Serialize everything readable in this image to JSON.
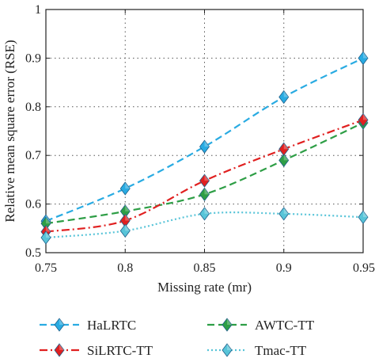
{
  "chart_data": {
    "type": "line",
    "title": "",
    "xlabel": "Missing rate (mr)",
    "ylabel": "Relative mean square error (RSE)",
    "xlim": [
      0.75,
      0.95
    ],
    "ylim": [
      0.5,
      1.0
    ],
    "x_ticks": [
      "0.75",
      "0.8",
      "0.85",
      "0.9",
      "0.95"
    ],
    "y_ticks": [
      "0.5",
      "0.6",
      "0.7",
      "0.8",
      "0.9",
      "1"
    ],
    "x": [
      0.75,
      0.8,
      0.85,
      0.9,
      0.95
    ],
    "grid": "dotted",
    "legend_position": "bottom, two columns below plot",
    "series": [
      {
        "name": "HaLRTC",
        "color": "#29abe2",
        "dash": "dashed",
        "marker": "diamond",
        "values": [
          0.565,
          0.632,
          0.718,
          0.82,
          0.9
        ]
      },
      {
        "name": "AWTC-TT",
        "color": "#2e9e46",
        "dash": "dashed",
        "marker": "diamond",
        "values": [
          0.56,
          0.585,
          0.62,
          0.69,
          0.767
        ]
      },
      {
        "name": "SiLRTC-TT",
        "color": "#e02020",
        "dash": "dashdot",
        "marker": "diamond",
        "values": [
          0.543,
          0.566,
          0.648,
          0.713,
          0.773
        ]
      },
      {
        "name": "Tmac-TT",
        "color": "#58c4d8",
        "dash": "dotted",
        "marker": "diamond",
        "values": [
          0.531,
          0.545,
          0.58,
          0.58,
          0.573
        ]
      }
    ]
  }
}
